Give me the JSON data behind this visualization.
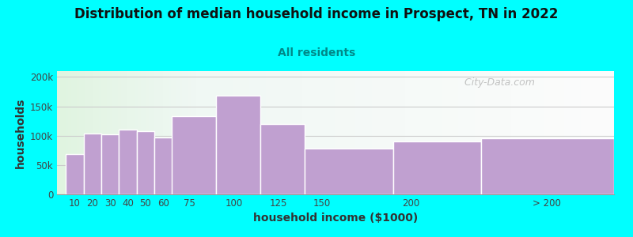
{
  "title": "Distribution of median household income in Prospect, TN in 2022",
  "subtitle": "All residents",
  "xlabel": "household income ($1000)",
  "ylabel": "households",
  "background_color": "#00FFFF",
  "bar_color": "#C0A0D0",
  "bar_edge_color": "#FFFFFF",
  "categories": [
    "10",
    "20",
    "30",
    "40",
    "50",
    "60",
    "75",
    "100",
    "125",
    "150",
    "200",
    "> 200"
  ],
  "values": [
    68000,
    103000,
    102000,
    110000,
    108000,
    97000,
    133000,
    168000,
    120000,
    78000,
    90000,
    95000
  ],
  "bar_widths": [
    10,
    10,
    10,
    10,
    10,
    15,
    25,
    25,
    25,
    50,
    50,
    75
  ],
  "bar_lefts": [
    5,
    15,
    25,
    35,
    45,
    55,
    65,
    90,
    115,
    140,
    190,
    240
  ],
  "xlim": [
    0,
    315
  ],
  "ylim": [
    0,
    210000
  ],
  "yticks": [
    0,
    50000,
    100000,
    150000,
    200000
  ],
  "ytick_labels": [
    "0",
    "50k",
    "100k",
    "150k",
    "200k"
  ],
  "xtick_positions": [
    10,
    20,
    30,
    40,
    50,
    60,
    75,
    100,
    125,
    150,
    200,
    277
  ],
  "xtick_labels": [
    "10",
    "20",
    "30",
    "40",
    "50",
    "60",
    "75",
    "100",
    "125",
    "150",
    "200",
    "> 200"
  ],
  "title_fontsize": 12,
  "subtitle_fontsize": 10,
  "axis_label_fontsize": 10,
  "watermark_text": "  City-Data.com"
}
